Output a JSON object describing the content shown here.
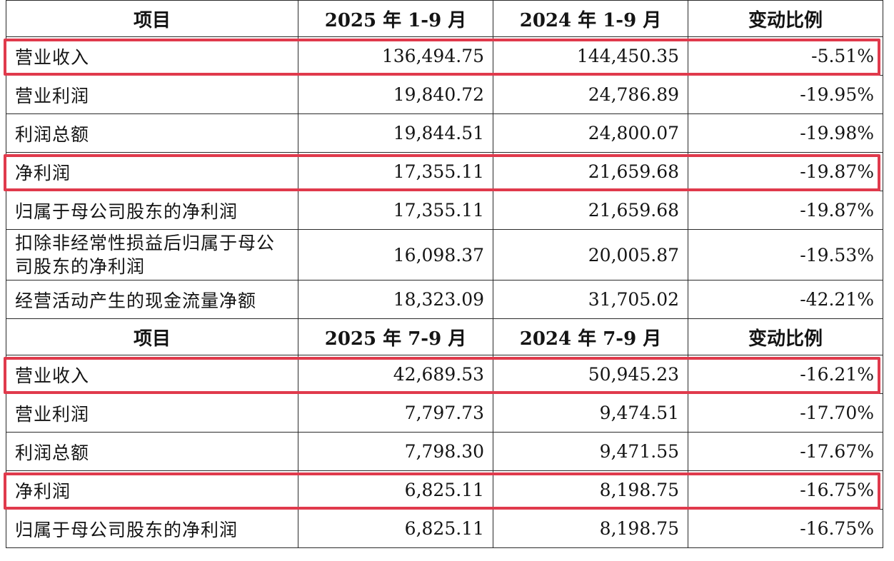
{
  "accent_color": "#e03a4c",
  "sections": [
    {
      "header": [
        "项目",
        "2025 年 1-9 月",
        "2024 年 1-9 月",
        "变动比例"
      ],
      "rows": [
        {
          "item": "营业收入",
          "cur": "136,494.75",
          "prev": "144,450.35",
          "change": "-5.51%",
          "highlighted": true
        },
        {
          "item": "营业利润",
          "cur": "19,840.72",
          "prev": "24,786.89",
          "change": "-19.95%",
          "highlighted": false
        },
        {
          "item": "利润总额",
          "cur": "19,844.51",
          "prev": "24,800.07",
          "change": "-19.98%",
          "highlighted": false
        },
        {
          "item": "净利润",
          "cur": "17,355.11",
          "prev": "21,659.68",
          "change": "-19.87%",
          "highlighted": true
        },
        {
          "item": "归属于母公司股东的净利润",
          "cur": "17,355.11",
          "prev": "21,659.68",
          "change": "-19.87%",
          "highlighted": false
        },
        {
          "item": "扣除非经常性损益后归属于母公司股东的净利润",
          "cur": "16,098.37",
          "prev": "20,005.87",
          "change": "-19.53%",
          "highlighted": false
        },
        {
          "item": "经营活动产生的现金流量净额",
          "cur": "18,323.09",
          "prev": "31,705.02",
          "change": "-42.21%",
          "highlighted": false
        }
      ]
    },
    {
      "header": [
        "项目",
        "2025 年 7-9 月",
        "2024 年 7-9 月",
        "变动比例"
      ],
      "rows": [
        {
          "item": "营业收入",
          "cur": "42,689.53",
          "prev": "50,945.23",
          "change": "-16.21%",
          "highlighted": true
        },
        {
          "item": "营业利润",
          "cur": "7,797.73",
          "prev": "9,474.51",
          "change": "-17.70%",
          "highlighted": false
        },
        {
          "item": "利润总额",
          "cur": "7,798.30",
          "prev": "9,471.55",
          "change": "-17.67%",
          "highlighted": false
        },
        {
          "item": "净利润",
          "cur": "6,825.11",
          "prev": "8,198.75",
          "change": "-16.75%",
          "highlighted": true
        },
        {
          "item": "归属于母公司股东的净利润",
          "cur": "6,825.11",
          "prev": "8,198.75",
          "change": "-16.75%",
          "highlighted": false
        }
      ]
    }
  ]
}
